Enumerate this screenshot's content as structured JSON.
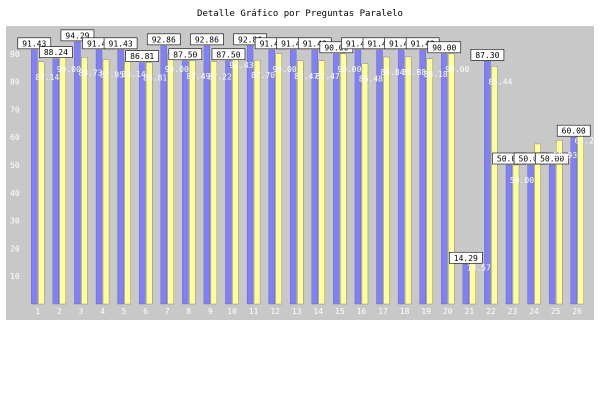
{
  "chart_data": {
    "type": "bar",
    "title": "Detalle Gráfico por Preguntas Paralelo",
    "xlabel": "",
    "ylabel": "",
    "ylim": [
      0,
      100
    ],
    "yticks": [
      10,
      20,
      30,
      40,
      50,
      60,
      70,
      80,
      90
    ],
    "categories": [
      "1",
      "2",
      "3",
      "4",
      "5",
      "6",
      "7",
      "8",
      "9",
      "10",
      "11",
      "12",
      "13",
      "14",
      "15",
      "16",
      "17",
      "18",
      "19",
      "20",
      "21",
      "22",
      "23",
      "24",
      "25",
      "26"
    ],
    "grid": false,
    "legend": "none",
    "colors": {
      "plot_bg": "#c8c8c8",
      "series1": "#8080ff",
      "series2": "#ffff99",
      "axis_text": "#ffffff"
    },
    "series": [
      {
        "values": [
          91.43,
          88.24,
          94.29,
          91.43,
          91.43,
          86.81,
          92.86,
          87.5,
          92.86,
          87.5,
          92.86,
          91.43,
          91.43,
          91.43,
          90.0,
          91.43,
          91.43,
          91.43,
          91.43,
          90.0,
          14.29,
          87.3,
          50.0,
          50.0,
          50.0,
          60.0
        ]
      },
      {
        "values": [
          87.14,
          90.0,
          88.73,
          87.95,
          88.14,
          86.81,
          90.0,
          87.49,
          87.22,
          91.43,
          87.7,
          90.0,
          87.47,
          87.47,
          90.0,
          86.48,
          88.84,
          88.88,
          88.18,
          90.0,
          18.57,
          85.44,
          50.0,
          57.57,
          58.93,
          64.29
        ]
      }
    ]
  }
}
